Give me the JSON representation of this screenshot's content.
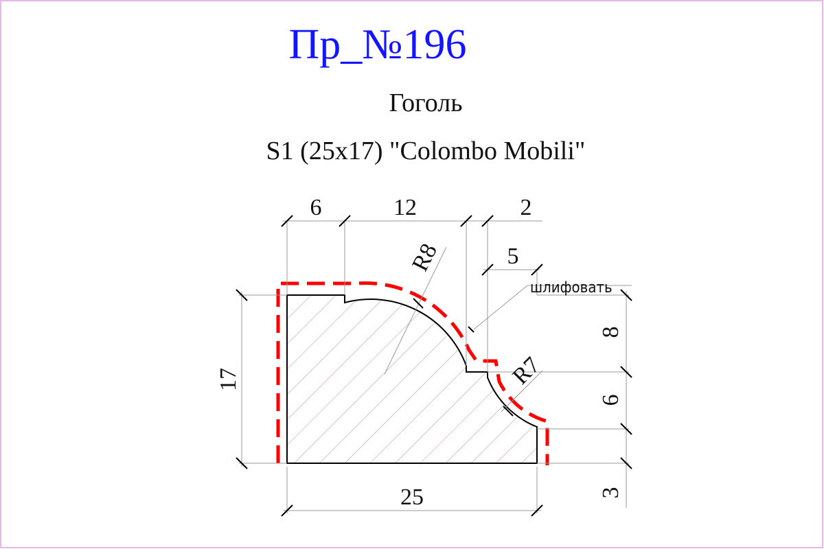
{
  "title": "Пр_№196",
  "profile_name": "Гоголь",
  "profile_spec": "S1 (25x17) \"Colombo Mobili\"",
  "dimensions": {
    "top_6": "6",
    "top_12": "12",
    "top_2": "2",
    "top_5": "5",
    "left_17": "17",
    "bottom_25": "25",
    "right_8": "8",
    "right_6": "6",
    "right_3": "3",
    "radius_r8": "R8",
    "radius_r7": "R7"
  },
  "note_sand": "шлифовать",
  "colors": {
    "title": "#1414ff",
    "cut_line": "#ff0000",
    "outline": "#000000",
    "border": "#e0a0e0",
    "hatch": "#b09090"
  }
}
